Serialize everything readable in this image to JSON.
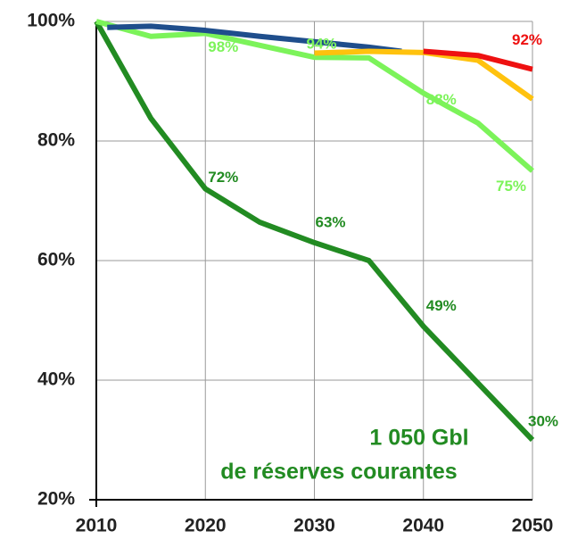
{
  "chart_data": {
    "type": "line",
    "xlim": [
      2010,
      2050
    ],
    "xticks": [
      2010,
      2020,
      2030,
      2040,
      2050
    ],
    "ylim": [
      20,
      100
    ],
    "yticks": [
      {
        "value": 20,
        "label": "20%"
      },
      {
        "value": 40,
        "label": "40%"
      },
      {
        "value": 60,
        "label": "60%"
      },
      {
        "value": 80,
        "label": "80%"
      },
      {
        "value": 100,
        "label": "100%"
      }
    ],
    "grid": true,
    "series": [
      {
        "color": "#228b22",
        "x": [
          2010,
          2015,
          2020,
          2025,
          2030,
          2035,
          2040,
          2045,
          2050
        ],
        "values": [
          100,
          83.8,
          72,
          66.4,
          63,
          60,
          49,
          39.5,
          30
        ],
        "value_labels": [
          null,
          null,
          "72%",
          null,
          "63%",
          null,
          "49%",
          null,
          "30%"
        ]
      },
      {
        "color": "#7cf35a",
        "x": [
          2010,
          2015,
          2020,
          2025,
          2030,
          2035,
          2040,
          2045,
          2050
        ],
        "values": [
          100,
          97.5,
          98,
          96,
          94,
          93.9,
          88,
          83,
          75
        ],
        "value_labels": [
          null,
          null,
          "98%",
          null,
          "94%",
          null,
          "88%",
          null,
          "75%"
        ]
      },
      {
        "color": "#1f4e8c",
        "x": [
          2011,
          2015,
          2020,
          2025,
          2030,
          2035,
          2038
        ],
        "values": [
          99,
          99.2,
          98.5,
          97.5,
          96.6,
          95.7,
          95
        ]
      },
      {
        "color": "#ffc20e",
        "x": [
          2030,
          2035,
          2040,
          2045,
          2050
        ],
        "values": [
          94.7,
          95,
          94.8,
          93.5,
          87
        ]
      },
      {
        "color": "#ee1111",
        "x": [
          2040,
          2045,
          2050
        ],
        "values": [
          95,
          94.3,
          92
        ],
        "value_labels": [
          null,
          null,
          "92%"
        ]
      }
    ],
    "annotations": [
      "1 050 Gbl",
      "de réserves courantes"
    ]
  }
}
